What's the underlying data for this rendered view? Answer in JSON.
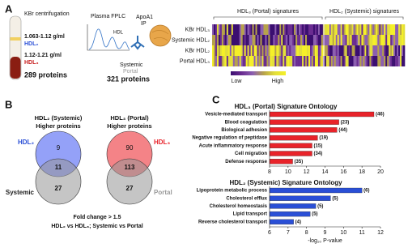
{
  "panel_a": {
    "letter": "A",
    "centrifugation": {
      "title": "KBr centrifugation",
      "density_1": "1.063-1.12 g/ml",
      "fraction_1": "HDL₂",
      "density_2": "1.12-1.21 g/ml",
      "fraction_2": "HDL₃",
      "proteins": "289 proteins"
    },
    "fplc": {
      "title": "Plasma FPLC",
      "peak": "HDL",
      "ip_1": "ApoA1",
      "ip_2": "IP",
      "source_1": "Systemic",
      "source_2": "Portal",
      "proteins": "321 proteins"
    },
    "heatmap": {
      "groups": [
        "HDL₃ (Portal) signatures",
        "HDL₂ (Systemic) signatures"
      ],
      "rows": [
        "KBr HDL₃",
        "Systemic HDL₂",
        "KBr HDL₂",
        "Portal HDL₃"
      ],
      "legend_low": "Low",
      "legend_high": "High"
    }
  },
  "panel_b": {
    "letter": "B",
    "venns": [
      {
        "title": "HDL₂ (Systemic)",
        "subtitle": "Higher proteins",
        "top_label": "HDL₂",
        "bottom_label": "Systemic",
        "top_only": 9,
        "overlap": 11,
        "bottom_only": 27
      },
      {
        "title": "HDL₃ (Portal)",
        "subtitle": "Higher proteins",
        "top_label": "HDL₃",
        "bottom_label": "Portal",
        "top_only": 90,
        "overlap": 113,
        "bottom_only": 27
      }
    ],
    "footnote": "Fold change > 1.5",
    "comparison": "HDL₂ vs HDL₃; Systemic vs Portal"
  },
  "panel_c": {
    "letter": "C",
    "charts": [
      {
        "type": "bar",
        "title": "HDL₃ (Portal) Signature Ontology",
        "color": "#e8232a",
        "categories": [
          "Vesicle-mediated transport",
          "Blood coagulation",
          "Biological adhesion",
          "Negative regulation of peptidase",
          "Acute inflammatory response",
          "Cell migration",
          "Defense response"
        ],
        "values": [
          19.3,
          15.5,
          15.3,
          13.2,
          12.6,
          12.6,
          10.5
        ],
        "counts": [
          "(46)",
          "(23)",
          "(44)",
          "(19)",
          "(15)",
          "(34)",
          "(35)"
        ],
        "xlim": [
          8,
          20
        ],
        "xticks": [
          8,
          10,
          12,
          14,
          16,
          18,
          20
        ]
      },
      {
        "type": "bar",
        "title": "HDL₂ (Systemic) Signature Ontology",
        "color": "#2a4fd6",
        "categories": [
          "Lipoprotein metabolic process",
          "Cholesterol efflux",
          "Cholesterol homeostasis",
          "Lipid transport",
          "Reverse cholesterol transport"
        ],
        "values": [
          11.0,
          9.3,
          8.5,
          8.2,
          7.3
        ],
        "counts": [
          "(6)",
          "(5)",
          "(5)",
          "(5)",
          "(4)"
        ],
        "xlim": [
          6,
          12
        ],
        "xticks": [
          6,
          7,
          8,
          9,
          10,
          11,
          12
        ],
        "xlabel": "-log₁₀ P-value"
      }
    ]
  }
}
